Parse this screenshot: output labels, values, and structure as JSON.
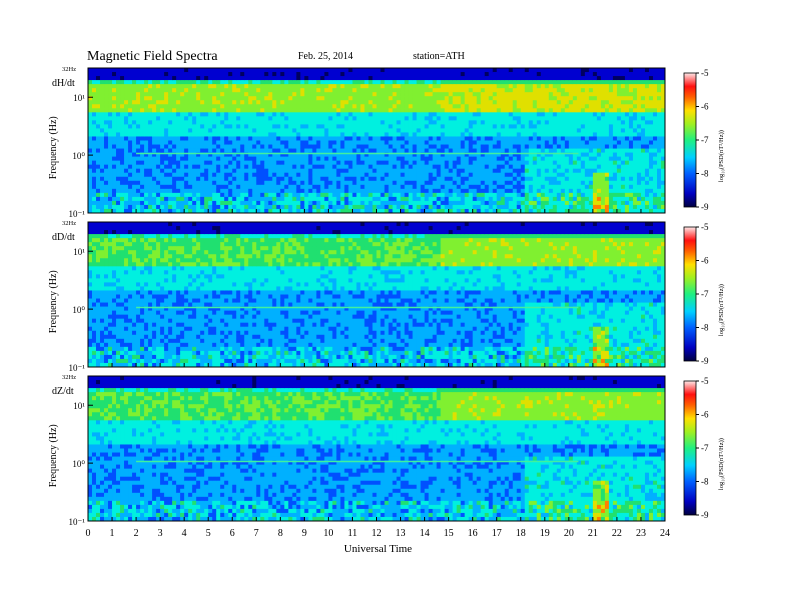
{
  "header": {
    "title": "Magnetic Field Spectra",
    "date": "Feb. 25, 2014",
    "station": "station=ATH"
  },
  "chart_data": {
    "type": "heatmap",
    "x": {
      "label": "Universal Time",
      "range": [
        0,
        24
      ],
      "ticks": [
        "0",
        "1",
        "2",
        "3",
        "4",
        "5",
        "6",
        "7",
        "8",
        "9",
        "10",
        "11",
        "12",
        "13",
        "14",
        "15",
        "16",
        "17",
        "18",
        "19",
        "20",
        "21",
        "22",
        "23",
        "24"
      ]
    },
    "panels": [
      {
        "name": "dH/dt",
        "ylabel": "Frequency (Hz)",
        "top_label": "32Hz",
        "ytick_labels": [
          "10¹",
          "10⁰",
          "10⁻¹"
        ],
        "yrange_hz": [
          0.1,
          32
        ],
        "colorbar_label": "log₁₀(PSD(nT²/Hz))",
        "colorbar_ticks": [
          "-5",
          "-6",
          "-7",
          "-8",
          "-9"
        ],
        "colorbar_range": [
          -9,
          -5
        ]
      },
      {
        "name": "dD/dt",
        "ylabel": "Frequency (Hz)",
        "top_label": "32Hz",
        "ytick_labels": [
          "10¹",
          "10⁰",
          "10⁻¹"
        ],
        "yrange_hz": [
          0.1,
          32
        ],
        "colorbar_label": "log₁₀(PSD(nT²/Hz))",
        "colorbar_ticks": [
          "-5",
          "-6",
          "-7",
          "-8",
          "-9"
        ],
        "colorbar_range": [
          -9,
          -5
        ]
      },
      {
        "name": "dZ/dt",
        "ylabel": "Frequency (Hz)",
        "top_label": "32Hz",
        "ytick_labels": [
          "10¹",
          "10⁰",
          "10⁻¹"
        ],
        "yrange_hz": [
          0.1,
          32
        ],
        "colorbar_label": "log₁₀(PSD(nT²/Hz))",
        "colorbar_ticks": [
          "-5",
          "-6",
          "-7",
          "-8",
          "-9"
        ],
        "colorbar_range": [
          -9,
          -5
        ]
      }
    ],
    "colormap": [
      "#000060",
      "#0000d0",
      "#0050ff",
      "#00b0ff",
      "#00f0e0",
      "#20e070",
      "#80f030",
      "#e0e000",
      "#ff8000",
      "#ff2020",
      "#ff9090",
      "#ffe0e0"
    ]
  }
}
